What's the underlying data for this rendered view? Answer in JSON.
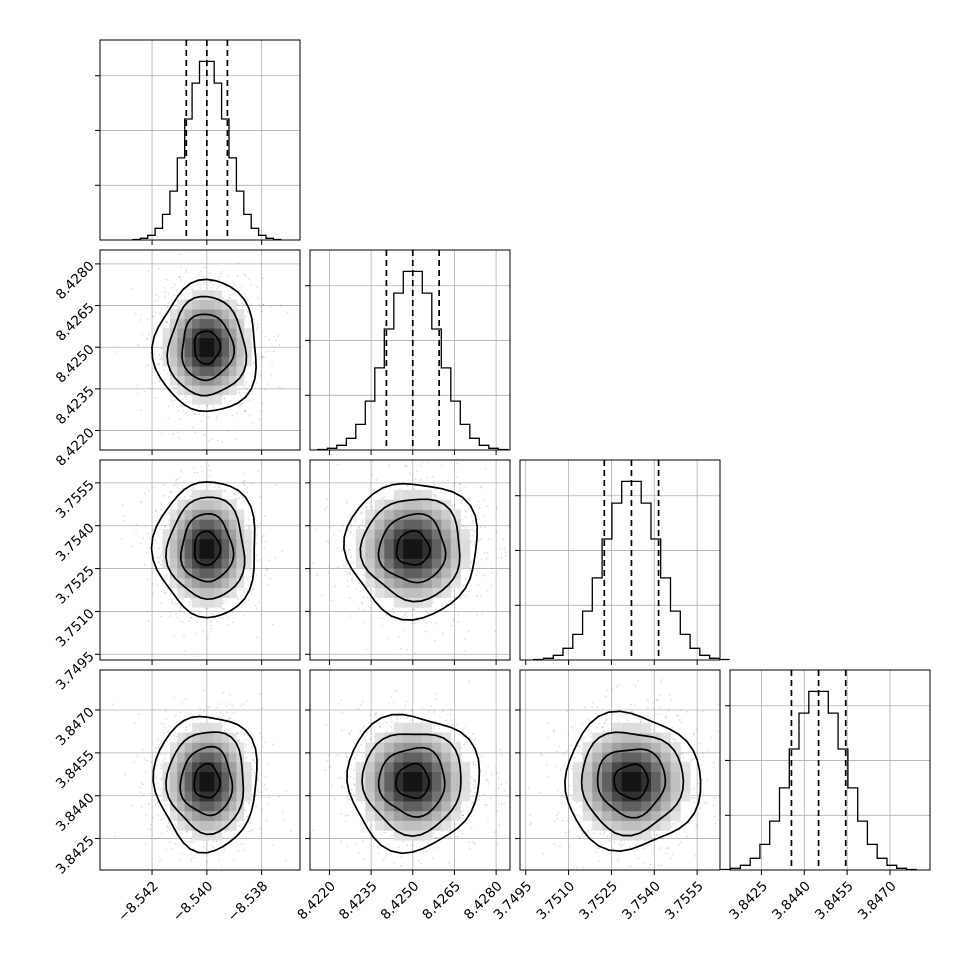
{
  "chart_data": {
    "type": "corner",
    "parameters": [
      {
        "index": 0,
        "mean": -8.54,
        "sigma": 0.00075,
        "quantiles": [
          -8.54075,
          -8.54,
          -8.53925
        ],
        "axis_range": [
          -8.5439,
          -8.5366
        ],
        "ticks": [
          -8.542,
          -8.54,
          -8.538
        ],
        "tick_labels": [
          "−8.542",
          "−8.540",
          "−8.538"
        ]
      },
      {
        "index": 1,
        "mean": 8.425,
        "sigma": 0.00095,
        "quantiles": [
          8.42405,
          8.425,
          8.42595
        ],
        "axis_range": [
          8.4213,
          8.4285
        ],
        "ticks": [
          8.422,
          8.4235,
          8.425,
          8.4265,
          8.428
        ],
        "tick_labels": [
          "8.4220",
          "8.4235",
          "8.4250",
          "8.4265",
          "8.4280"
        ]
      },
      {
        "index": 2,
        "mean": 3.7532,
        "sigma": 0.00095,
        "quantiles": [
          3.75225,
          3.7532,
          3.75415
        ],
        "axis_range": [
          3.7493,
          3.7563
        ],
        "ticks": [
          3.7495,
          3.751,
          3.7525,
          3.754,
          3.7555
        ],
        "tick_labels": [
          "3.7495",
          "3.7510",
          "3.7525",
          "3.7540",
          "3.7555"
        ]
      },
      {
        "index": 3,
        "mean": 3.8445,
        "sigma": 0.00095,
        "quantiles": [
          3.84355,
          3.8445,
          3.84545
        ],
        "axis_range": [
          3.8414,
          3.8484
        ],
        "ticks": [
          3.8425,
          3.844,
          3.8455,
          3.847
        ],
        "tick_labels": [
          "3.8425",
          "3.8440",
          "3.8455",
          "3.8470"
        ]
      }
    ],
    "histogram_bins": 20,
    "contour_levels_sigma": [
      0.5,
      1.0,
      1.5,
      2.0
    ],
    "grid": true,
    "legend": "none"
  }
}
